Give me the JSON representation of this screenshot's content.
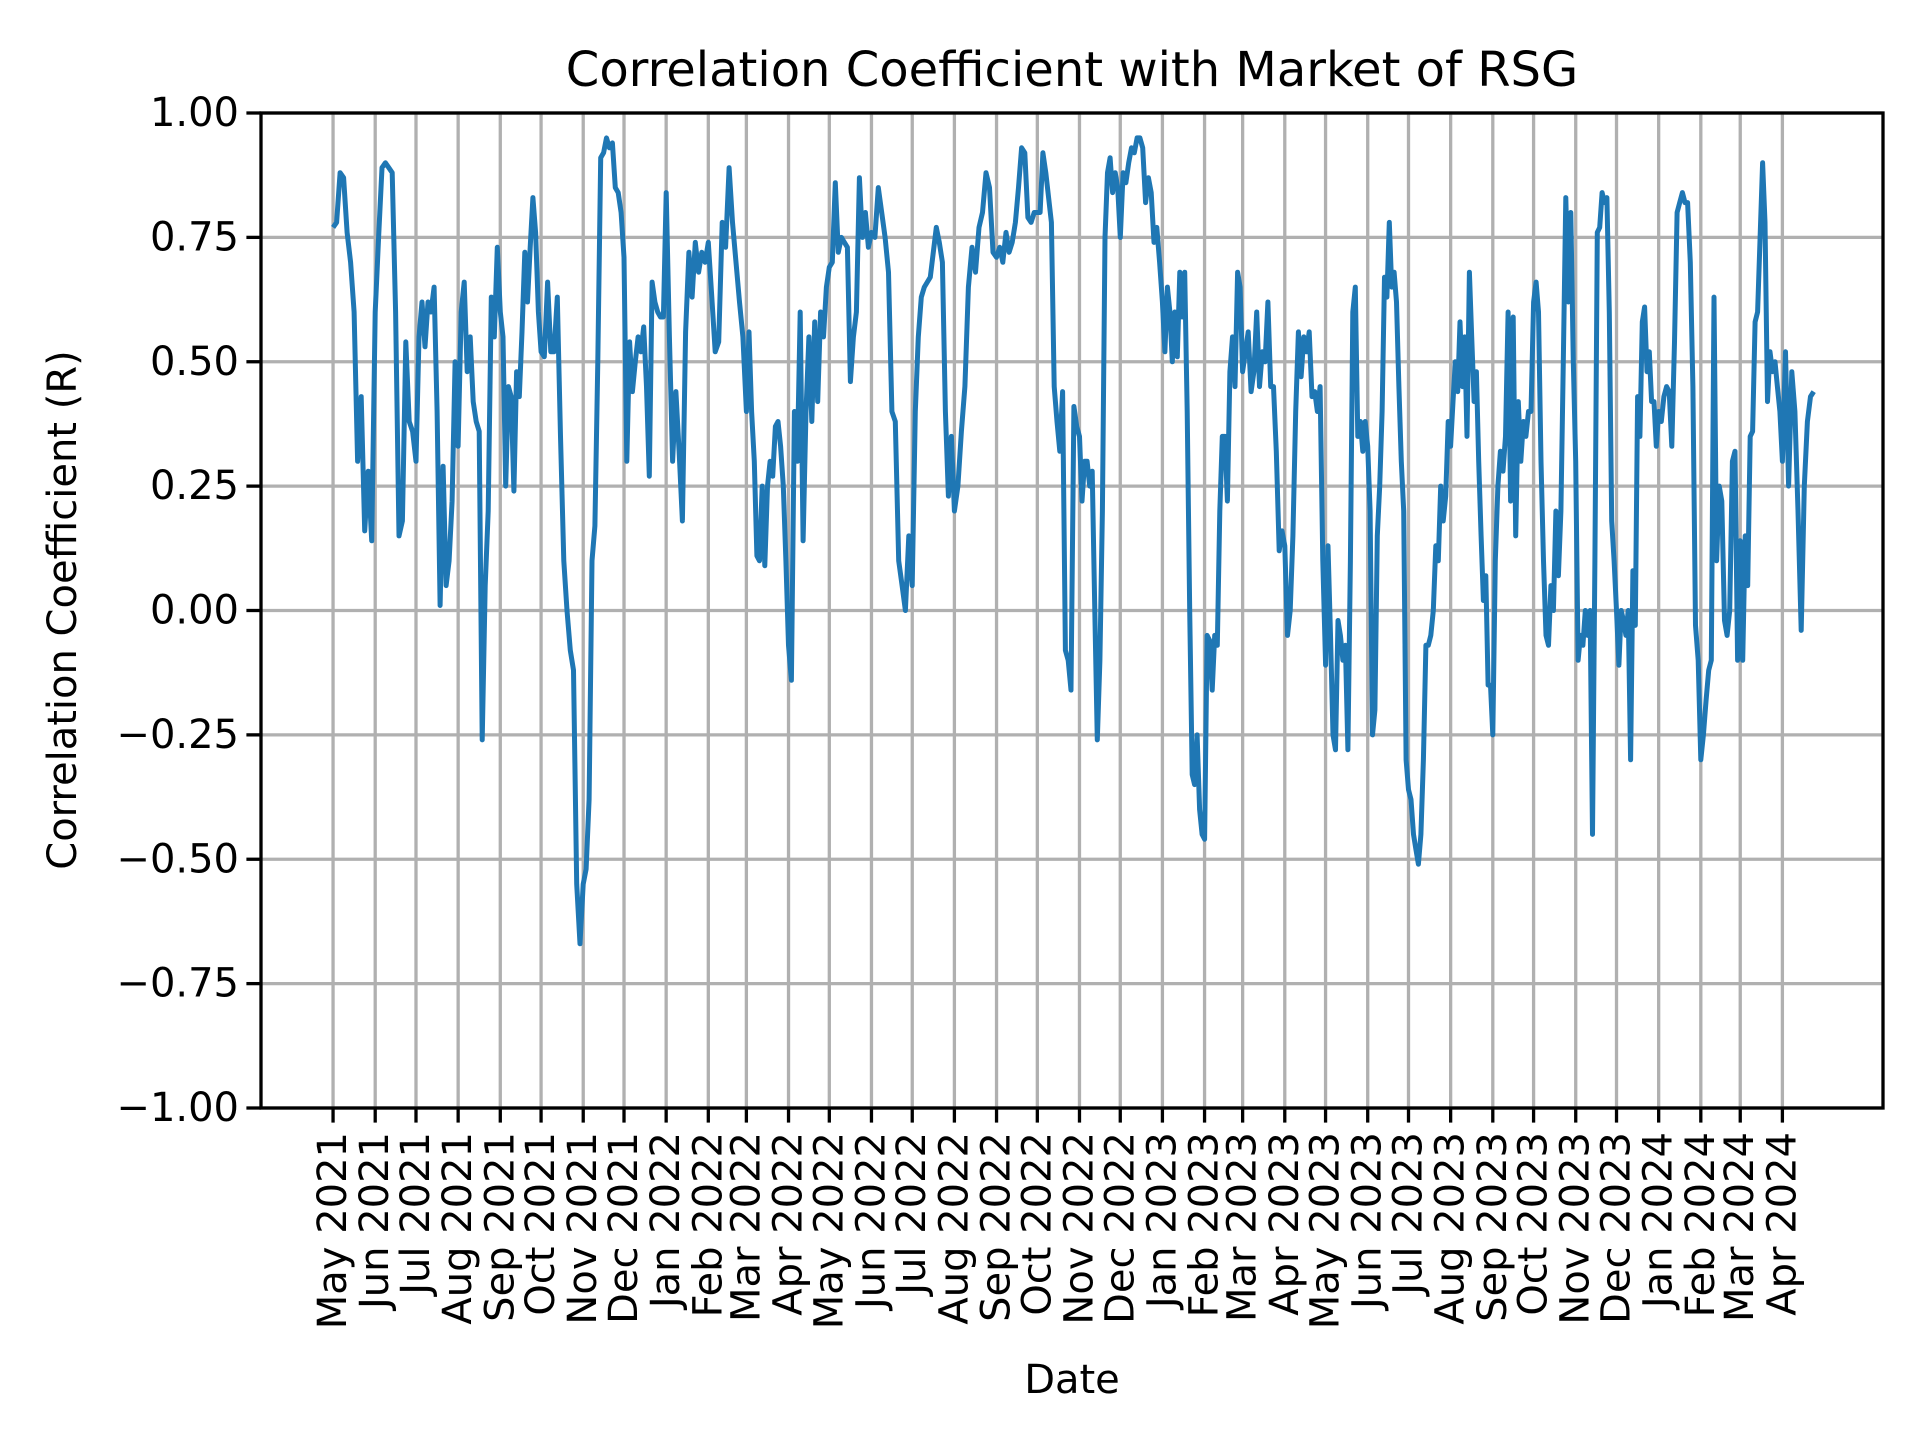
{
  "chart_data": {
    "type": "line",
    "title": "Correlation Coefficient with Market of RSG",
    "xlabel": "Date",
    "ylabel": "Correlation Coefficient (R)",
    "xlim": [
      "2021-03-09",
      "2024-06-14"
    ],
    "ylim": [
      -1.0,
      1.0
    ],
    "yticks": [
      -1.0,
      -0.75,
      -0.5,
      -0.25,
      0.0,
      0.25,
      0.5,
      0.75,
      1.0
    ],
    "ytick_labels": [
      "−1.00",
      "−0.75",
      "−0.50",
      "−0.25",
      "0.00",
      "0.25",
      "0.50",
      "0.75",
      "1.00"
    ],
    "xticks": [
      "2021-05-01",
      "2021-06-01",
      "2021-07-01",
      "2021-08-01",
      "2021-09-01",
      "2021-10-01",
      "2021-11-01",
      "2021-12-01",
      "2022-01-01",
      "2022-02-01",
      "2022-03-01",
      "2022-04-01",
      "2022-05-01",
      "2022-06-01",
      "2022-07-01",
      "2022-08-01",
      "2022-09-01",
      "2022-10-01",
      "2022-11-01",
      "2022-12-01",
      "2023-01-01",
      "2023-02-01",
      "2023-03-01",
      "2023-04-01",
      "2023-05-01",
      "2023-06-01",
      "2023-07-01",
      "2023-08-01",
      "2023-09-01",
      "2023-10-01",
      "2023-11-01",
      "2023-12-01",
      "2024-01-01",
      "2024-02-01",
      "2024-03-01",
      "2024-04-01"
    ],
    "xtick_labels": [
      "May 2021",
      "Jun 2021",
      "Jul 2021",
      "Aug 2021",
      "Sep 2021",
      "Oct 2021",
      "Nov 2021",
      "Dec 2021",
      "Jan 2022",
      "Feb 2022",
      "Mar 2022",
      "Apr 2022",
      "May 2022",
      "Jun 2022",
      "Jul 2022",
      "Aug 2022",
      "Sep 2022",
      "Oct 2022",
      "Nov 2022",
      "Dec 2022",
      "Jan 2023",
      "Feb 2023",
      "Mar 2023",
      "Apr 2023",
      "May 2023",
      "Jun 2023",
      "Jul 2023",
      "Aug 2023",
      "Sep 2023",
      "Oct 2023",
      "Nov 2023",
      "Dec 2023",
      "Jan 2024",
      "Feb 2024",
      "Mar 2024",
      "Apr 2024"
    ],
    "grid": true,
    "line_color": "#1f77b4",
    "last_date": "2024-04-24",
    "values_by_month": {
      "2021-05": [
        0.77,
        0.78,
        0.88,
        0.87,
        0.76,
        0.7,
        0.6,
        0.3,
        0.43,
        0.16,
        0.28,
        0.14
      ],
      "2021-06": [
        0.6,
        0.75,
        0.89,
        0.9,
        0.89,
        0.88,
        0.6,
        0.15,
        0.18,
        0.54,
        0.38,
        0.36
      ],
      "2021-07": [
        0.3,
        0.55,
        0.62,
        0.53,
        0.62,
        0.6,
        0.65,
        0.4,
        0.01,
        0.29,
        0.05,
        0.1,
        0.22,
        0.5
      ],
      "2021-08": [
        0.33,
        0.6,
        0.66,
        0.48,
        0.55,
        0.42,
        0.38,
        0.36,
        -0.26,
        0.05,
        0.2,
        0.63,
        0.55,
        0.73
      ],
      "2021-09": [
        0.6,
        0.55,
        0.25,
        0.45,
        0.43,
        0.24,
        0.48,
        0.43,
        0.56,
        0.72,
        0.62,
        0.73,
        0.83,
        0.76,
        0.6
      ],
      "2021-10": [
        0.52,
        0.51,
        0.66,
        0.52,
        0.52,
        0.63,
        0.35,
        0.1,
        0.0,
        -0.08,
        -0.12,
        -0.55,
        -0.67
      ],
      "2021-11": [
        -0.55,
        -0.52,
        -0.38,
        0.1,
        0.17,
        0.5,
        0.91,
        0.92,
        0.95,
        0.93,
        0.94,
        0.85,
        0.84,
        0.8
      ],
      "2021-12": [
        0.71,
        0.3,
        0.54,
        0.44,
        0.5,
        0.55,
        0.52,
        0.57,
        0.45,
        0.27,
        0.66,
        0.62,
        0.6,
        0.59,
        0.59
      ],
      "2022-01": [
        0.84,
        0.55,
        0.3,
        0.44,
        0.32,
        0.18,
        0.56,
        0.72,
        0.63,
        0.74,
        0.68,
        0.72,
        0.7
      ],
      "2022-02": [
        0.74,
        0.63,
        0.52,
        0.54,
        0.78,
        0.73,
        0.89,
        0.78,
        0.7,
        0.62,
        0.55
      ],
      "2022-03": [
        0.4,
        0.56,
        0.4,
        0.3,
        0.11,
        0.1,
        0.25,
        0.09,
        0.25,
        0.3,
        0.27,
        0.37,
        0.38,
        0.33,
        0.25,
        0.1
      ],
      "2022-04": [
        -0.07,
        -0.14,
        0.4,
        0.3,
        0.6,
        0.14,
        0.4,
        0.55,
        0.38,
        0.58,
        0.42,
        0.6,
        0.55,
        0.65
      ],
      "2022-05": [
        0.69,
        0.7,
        0.86,
        0.72,
        0.75,
        0.74,
        0.73,
        0.46,
        0.55,
        0.6,
        0.87,
        0.75,
        0.8,
        0.73
      ],
      "2022-06": [
        0.76,
        0.75,
        0.85,
        0.8,
        0.75,
        0.68,
        0.4,
        0.38,
        0.1,
        0.05,
        0.0,
        0.15
      ],
      "2022-07": [
        0.05,
        0.4,
        0.55,
        0.63,
        0.65,
        0.66,
        0.67,
        0.72,
        0.77,
        0.74,
        0.7,
        0.4,
        0.23,
        0.35
      ],
      "2022-08": [
        0.2,
        0.25,
        0.36,
        0.45,
        0.65,
        0.73,
        0.68,
        0.77,
        0.8,
        0.88,
        0.85,
        0.72
      ],
      "2022-09": [
        0.71,
        0.73,
        0.7,
        0.76,
        0.72,
        0.74,
        0.78,
        0.85,
        0.93,
        0.92,
        0.79,
        0.78,
        0.8
      ],
      "2022-10": [
        0.8,
        0.8,
        0.92,
        0.88,
        0.83,
        0.78,
        0.45,
        0.38,
        0.32,
        0.44,
        -0.08,
        -0.1,
        -0.16,
        0.41,
        0.37
      ],
      "2022-11": [
        0.35,
        0.22,
        0.3,
        0.3,
        0.25,
        0.28,
        0.0,
        -0.26,
        -0.1,
        0.2,
        0.75,
        0.88,
        0.91,
        0.84,
        0.88,
        0.85
      ],
      "2022-12": [
        0.75,
        0.88,
        0.86,
        0.9,
        0.93,
        0.92,
        0.95,
        0.95,
        0.93,
        0.82,
        0.87,
        0.84,
        0.74,
        0.77,
        0.7
      ],
      "2023-01": [
        0.62,
        0.52,
        0.65,
        0.6,
        0.5,
        0.6,
        0.51,
        0.68,
        0.59,
        0.68,
        0.4,
        0.0,
        -0.33,
        -0.35,
        -0.25,
        -0.4,
        -0.45
      ],
      "2023-02": [
        -0.46,
        -0.05,
        -0.06,
        -0.16,
        -0.05,
        -0.07,
        0.2,
        0.35,
        0.35,
        0.22,
        0.48,
        0.55,
        0.45,
        0.68,
        0.65
      ],
      "2023-03": [
        0.48,
        0.52,
        0.56,
        0.44,
        0.48,
        0.6,
        0.45,
        0.52,
        0.5,
        0.62,
        0.45,
        0.45,
        0.32,
        0.12,
        0.16
      ],
      "2023-04": [
        0.13,
        -0.05,
        0.0,
        0.15,
        0.4,
        0.56,
        0.47,
        0.55,
        0.52,
        0.56,
        0.43,
        0.44,
        0.4,
        0.45,
        0.1
      ],
      "2023-05": [
        -0.11,
        0.13,
        -0.05,
        -0.25,
        -0.28,
        -0.02,
        -0.05,
        -0.1,
        -0.07,
        -0.28,
        0.1,
        0.6,
        0.65,
        0.35,
        0.38,
        0.32,
        0.38
      ],
      "2023-06": [
        0.33,
        0.2,
        -0.25,
        -0.2,
        0.15,
        0.25,
        0.4,
        0.67,
        0.63,
        0.78,
        0.65,
        0.68,
        0.62,
        0.45,
        0.3,
        0.2,
        -0.3
      ],
      "2023-07": [
        -0.36,
        -0.38,
        -0.45,
        -0.48,
        -0.51,
        -0.45,
        -0.3,
        -0.07,
        -0.07,
        -0.05,
        0.0,
        0.13,
        0.1,
        0.25,
        0.18,
        0.23,
        0.38
      ],
      "2023-08": [
        0.33,
        0.42,
        0.5,
        0.44,
        0.58,
        0.45,
        0.55,
        0.35,
        0.68,
        0.55,
        0.42,
        0.48,
        0.3,
        0.15,
        0.02,
        0.07,
        -0.15,
        -0.15
      ],
      "2023-09": [
        -0.25,
        0.1,
        0.25,
        0.32,
        0.28,
        0.35,
        0.6,
        0.22,
        0.59,
        0.15,
        0.42,
        0.3,
        0.38,
        0.35,
        0.4,
        0.4
      ],
      "2023-10": [
        0.62,
        0.66,
        0.6,
        0.3,
        0.1,
        -0.05,
        -0.07,
        0.05,
        0.0,
        0.2,
        0.07,
        0.2,
        0.5,
        0.83,
        0.62,
        0.8,
        0.5
      ],
      "2023-11": [
        0.3,
        -0.1,
        -0.05,
        -0.07,
        0.0,
        -0.05,
        0.0,
        -0.45,
        0.1,
        0.76,
        0.77,
        0.84,
        0.82,
        0.83,
        0.6,
        0.18,
        0.1
      ],
      "2023-12": [
        0.0,
        -0.11,
        0.0,
        -0.02,
        -0.05,
        0.0,
        -0.3,
        0.08,
        -0.03,
        0.43,
        0.35,
        0.58,
        0.61,
        0.48,
        0.52,
        0.42,
        0.42,
        0.33
      ],
      "2024-01": [
        0.4,
        0.38,
        0.43,
        0.45,
        0.44,
        0.33,
        0.54,
        0.8,
        0.82,
        0.84,
        0.82,
        0.82,
        0.7,
        0.45,
        -0.03,
        -0.1
      ],
      "2024-02": [
        -0.3,
        -0.25,
        -0.18,
        -0.12,
        -0.1,
        0.63,
        0.1,
        0.25,
        0.22,
        -0.02,
        -0.05,
        0.0,
        0.3,
        0.32,
        -0.1
      ],
      "2024-03": [
        0.14,
        -0.1,
        0.15,
        0.05,
        0.35,
        0.36,
        0.58,
        0.6,
        0.75,
        0.9,
        0.78,
        0.42,
        0.52,
        0.48,
        0.5,
        0.45,
        0.4
      ],
      "2024-04": [
        0.3,
        0.52,
        0.25,
        0.48,
        0.4,
        0.2,
        -0.04,
        0.25,
        0.38,
        0.43,
        0.44
      ]
    }
  }
}
